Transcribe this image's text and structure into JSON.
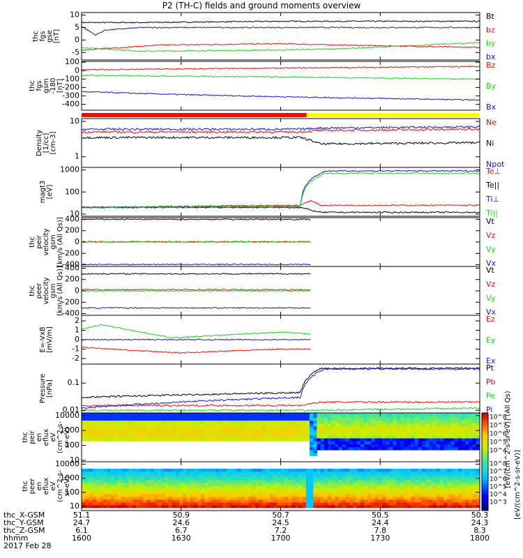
{
  "title": "P2 (TH-C) fields and ground moments overview",
  "date_label": "2017 Feb 28",
  "colors": {
    "black": "#000000",
    "red": "#e8100d",
    "green": "#19d419",
    "blue": "#1414d2",
    "yellow": "#ffff00"
  },
  "chart_data": [
    {
      "type": "line",
      "ylabel": [
        "thc",
        "fgs",
        "gse",
        "[nT]"
      ],
      "ylim": [
        -8,
        11
      ],
      "ticks": [
        10,
        5,
        0,
        -5
      ],
      "series": [
        {
          "name": "Bt",
          "color": "black",
          "points": [
            [
              1600,
              7
            ],
            [
              1630,
              7
            ],
            [
              1700,
              7.5
            ],
            [
              1730,
              7.5
            ],
            [
              1800,
              7.5
            ]
          ]
        },
        {
          "name": "bz",
          "color": "red",
          "points": [
            [
              1600,
              -4
            ],
            [
              1620,
              -3
            ],
            [
              1640,
              -2
            ],
            [
              1700,
              -1.5
            ],
            [
              1730,
              -2
            ],
            [
              1800,
              -3
            ]
          ]
        },
        {
          "name": "by",
          "color": "green",
          "points": [
            [
              1600,
              -3
            ],
            [
              1630,
              -4.5
            ],
            [
              1700,
              -4
            ],
            [
              1730,
              -3.5
            ],
            [
              1800,
              -1
            ]
          ]
        },
        {
          "name": "bx",
          "color": "blue",
          "points": [
            [
              1600,
              5.5
            ],
            [
              1607,
              2
            ],
            [
              1612,
              4
            ],
            [
              1630,
              5
            ],
            [
              1700,
              5
            ],
            [
              1730,
              5
            ],
            [
              1800,
              5
            ]
          ]
        }
      ]
    },
    {
      "type": "line",
      "ylabel": [
        "thc",
        "fgs",
        "gsm",
        "-180",
        "[nT]"
      ],
      "ylim": [
        -470,
        110
      ],
      "ticks": [
        100,
        0,
        -100,
        -200,
        -300,
        -400
      ],
      "series": [
        {
          "name": "Bz",
          "color": "red",
          "points": [
            [
              1600,
              10
            ],
            [
              1700,
              30
            ],
            [
              1800,
              50
            ]
          ]
        },
        {
          "name": "By",
          "color": "green",
          "points": [
            [
              1600,
              -55
            ],
            [
              1700,
              -75
            ],
            [
              1800,
              -100
            ]
          ]
        },
        {
          "name": "Bx",
          "color": "blue",
          "points": [
            [
              1600,
              -250
            ],
            [
              1650,
              -285
            ],
            [
              1700,
              -310
            ],
            [
              1800,
              -350
            ]
          ]
        }
      ]
    },
    {
      "type": "bar",
      "name": "mode-bar",
      "segments": [
        {
          "from": 1600,
          "to": 1713,
          "color": "red"
        },
        {
          "from": 1713,
          "to": 1800,
          "color": "yellow"
        }
      ]
    },
    {
      "type": "line",
      "ylabel": [
        "Density",
        "[1/cc]",
        "[cm-3]"
      ],
      "scale": "log",
      "ylim": [
        0.5,
        12
      ],
      "ticks": [
        10,
        1
      ],
      "series": [
        {
          "name": "Ne",
          "color": "red",
          "points": [
            [
              1600,
              5
            ],
            [
              1710,
              5
            ],
            [
              1720,
              5.5
            ],
            [
              1800,
              6
            ]
          ]
        },
        {
          "name": "Ni",
          "color": "black",
          "points": [
            [
              1600,
              3.5
            ],
            [
              1710,
              3.5
            ],
            [
              1720,
              2.3
            ],
            [
              1800,
              2.5
            ]
          ]
        },
        {
          "name": "Npot",
          "color": "blue",
          "points": [
            [
              1600,
              6
            ],
            [
              1710,
              6
            ],
            [
              1720,
              6.5
            ],
            [
              1800,
              7
            ]
          ]
        }
      ]
    },
    {
      "type": "line",
      "ylabel": [
        "magt3",
        "[eV]"
      ],
      "scale": "log",
      "ylim": [
        8,
        1300
      ],
      "ticks": [
        1000,
        100,
        10
      ],
      "series": [
        {
          "name": "Te⊥",
          "color": "red",
          "points": [
            [
              1600,
              20
            ],
            [
              1710,
              25
            ],
            [
              1715,
              40
            ],
            [
              1720,
              25
            ],
            [
              1800,
              25
            ]
          ]
        },
        {
          "name": "Te||",
          "color": "black",
          "points": [
            [
              1600,
              20
            ],
            [
              1710,
              20
            ],
            [
              1715,
              15
            ],
            [
              1720,
              12
            ],
            [
              1800,
              12
            ]
          ]
        },
        {
          "name": "Ti⊥",
          "color": "blue",
          "points": [
            [
              1600,
              20
            ],
            [
              1710,
              22
            ],
            [
              1723,
              900
            ],
            [
              1800,
              900
            ]
          ]
        },
        {
          "name": "Ti||",
          "color": "green",
          "points": [
            [
              1600,
              20
            ],
            [
              1710,
              22
            ],
            [
              1723,
              700
            ],
            [
              1800,
              700
            ]
          ]
        }
      ]
    },
    {
      "type": "line",
      "ylabel": [
        "thc",
        "peir",
        "velocity",
        "gsm",
        "[km/s (All Qs)]"
      ],
      "ylim": [
        -430,
        430
      ],
      "ticks": [
        400,
        200,
        0,
        -200,
        -400
      ],
      "series": [
        {
          "name": "Vt",
          "color": "black",
          "points": [
            [
              1600,
              400
            ],
            [
              1715,
              400
            ]
          ]
        },
        {
          "name": "Vz",
          "color": "red",
          "points": [
            [
              1600,
              5
            ],
            [
              1715,
              5
            ]
          ]
        },
        {
          "name": "Vy",
          "color": "green",
          "points": [
            [
              1600,
              0
            ],
            [
              1715,
              0
            ]
          ]
        },
        {
          "name": "Vx",
          "color": "blue",
          "points": [
            [
              1600,
              -395
            ],
            [
              1715,
              -395
            ]
          ]
        }
      ]
    },
    {
      "type": "line",
      "ylabel": [
        "thc",
        "peer",
        "velocity",
        "gsm",
        "[km/s (All Qs)]"
      ],
      "ylim": [
        -430,
        430
      ],
      "ticks": [
        400,
        200,
        0,
        -200,
        -400
      ],
      "series": [
        {
          "name": "Vt",
          "color": "black",
          "points": [
            [
              1600,
              300
            ],
            [
              1715,
              300
            ]
          ]
        },
        {
          "name": "Vz",
          "color": "red",
          "points": [
            [
              1600,
              20
            ],
            [
              1715,
              20
            ]
          ]
        },
        {
          "name": "Vy",
          "color": "green",
          "points": [
            [
              1600,
              0
            ],
            [
              1715,
              0
            ]
          ]
        },
        {
          "name": "Vx",
          "color": "blue",
          "points": [
            [
              1600,
              -300
            ],
            [
              1715,
              -300
            ]
          ]
        }
      ]
    },
    {
      "type": "line",
      "ylabel": [
        "E=-VxB",
        "[mV/m]"
      ],
      "ylim": [
        -2.6,
        2.6
      ],
      "ticks": [
        2,
        1,
        0,
        -1,
        -2
      ],
      "series": [
        {
          "name": "Ez",
          "color": "red",
          "points": [
            [
              1600,
              -0.8
            ],
            [
              1630,
              -1.2
            ],
            [
              1650,
              -1.4
            ],
            [
              1700,
              -1
            ],
            [
              1715,
              -1
            ]
          ]
        },
        {
          "name": "Ey",
          "color": "green",
          "points": [
            [
              1600,
              1.1
            ],
            [
              1610,
              1.6
            ],
            [
              1630,
              0.8
            ],
            [
              1645,
              0.2
            ],
            [
              1700,
              0.8
            ],
            [
              1715,
              0.6
            ]
          ]
        },
        {
          "name": "Ex",
          "color": "blue",
          "points": [
            [
              1600,
              0
            ],
            [
              1715,
              0
            ]
          ]
        }
      ]
    },
    {
      "type": "line",
      "ylabel": [
        "Pressure",
        "[nPa]"
      ],
      "scale": "log",
      "ylim": [
        0.008,
        0.5
      ],
      "ticks": [
        0.1,
        0.01
      ],
      "series": [
        {
          "name": "Pt",
          "color": "black",
          "points": [
            [
              1600,
              0.03
            ],
            [
              1710,
              0.045
            ],
            [
              1720,
              0.35
            ],
            [
              1800,
              0.35
            ]
          ]
        },
        {
          "name": "Pb",
          "color": "red",
          "points": [
            [
              1600,
              0.015
            ],
            [
              1710,
              0.015
            ],
            [
              1720,
              0.02
            ],
            [
              1800,
              0.02
            ]
          ]
        },
        {
          "name": "Pe",
          "color": "green",
          "points": [
            [
              1600,
              0.01
            ],
            [
              1710,
              0.01
            ],
            [
              1720,
              0.01
            ],
            [
              1800,
              0.012
            ]
          ]
        },
        {
          "name": "Pi",
          "color": "blue",
          "points": [
            [
              1600,
              0.012
            ],
            [
              1710,
              0.03
            ],
            [
              1722,
              0.33
            ],
            [
              1800,
              0.33
            ]
          ]
        }
      ]
    },
    {
      "type": "heatmap",
      "ylabel": [
        "thc",
        "peir",
        "en",
        "eflux",
        "eV",
        "(cm^2-s-",
        "sr-eV)"
      ],
      "scale": "log",
      "ylim": [
        8,
        15000
      ],
      "ticks": [
        10000,
        1000,
        100,
        10
      ],
      "colorbar": {
        "label": "[eV/(cm^2-s-sr-eV)] (All Qs)",
        "ticks": [
          "10^8",
          "10^7",
          "10^6",
          "10^5",
          "10^4"
        ]
      }
    },
    {
      "type": "heatmap",
      "ylabel": [
        "thc",
        "peer",
        "en",
        "eflux",
        "eV",
        "(cm^2-s-",
        "sr-eV)"
      ],
      "scale": "log",
      "ylim": [
        5,
        15000
      ],
      "ticks": [
        10000,
        1000,
        100,
        10
      ],
      "colorbar": {
        "label": "[eV/(cm^2-s-sr-eV)]",
        "ticks": [
          "10^8",
          "10^7",
          "10^6",
          "10^5",
          "10^4",
          "10^3"
        ]
      }
    }
  ],
  "orbit_rows": [
    {
      "label": "thc_X-GSM",
      "values": [
        "51.1",
        "50.9",
        "50.7",
        "50.5",
        "50.3"
      ]
    },
    {
      "label": "thc_Y-GSM",
      "values": [
        "24.7",
        "24.6",
        "24.5",
        "24.4",
        "24.3"
      ]
    },
    {
      "label": "thc_Z-GSM",
      "values": [
        "6.1",
        "6.7",
        "7.2",
        "7.8",
        "8.3"
      ]
    },
    {
      "label": "hhmm",
      "values": [
        "1600",
        "1630",
        "1700",
        "1730",
        "1800"
      ]
    }
  ]
}
